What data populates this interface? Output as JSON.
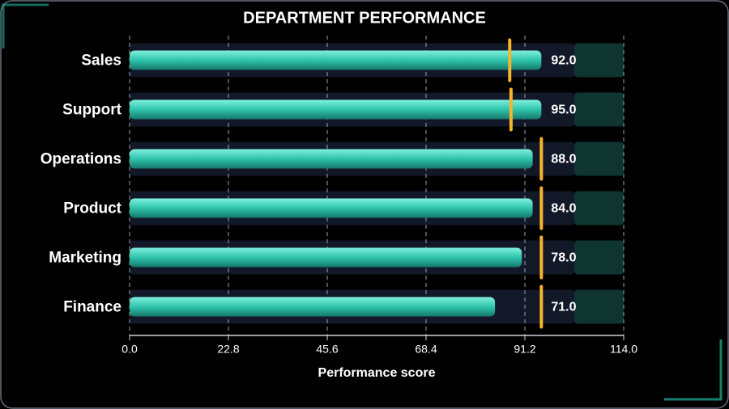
{
  "chart_data": {
    "type": "bullet",
    "title": "DEPARTMENT PERFORMANCE",
    "x_label": "Performance score",
    "categories": [
      "Sales",
      "Support",
      "Operations",
      "Product",
      "Marketing",
      "Finance"
    ],
    "values": [
      95,
      95,
      93,
      93,
      90.5,
      84.3
    ],
    "targets": [
      87.7,
      88,
      95,
      95,
      95,
      95
    ],
    "annotations": [
      {
        "value": 92,
        "label": "92.0"
      },
      {
        "value": 95,
        "label": "95.0"
      },
      {
        "value": 88,
        "label": "88.0"
      },
      {
        "value": 84,
        "label": "84.0"
      },
      {
        "value": 78,
        "label": "78.0"
      },
      {
        "value": 71,
        "label": "71.0"
      }
    ],
    "bands": [
      {
        "from": 0,
        "to": 102.6,
        "color": "#121828"
      },
      {
        "from": 102.6,
        "to": 114,
        "color": "#0e3530"
      }
    ],
    "color": "#2fc4ad",
    "target_color": "#f7b42c",
    "xlim": [
      0,
      114
    ],
    "xticks": [
      {
        "value": 0,
        "label": "0.0"
      },
      22.8,
      45.6,
      68.4,
      91.2,
      {
        "value": 114,
        "label": "114.0"
      }
    ],
    "grid": true
  }
}
